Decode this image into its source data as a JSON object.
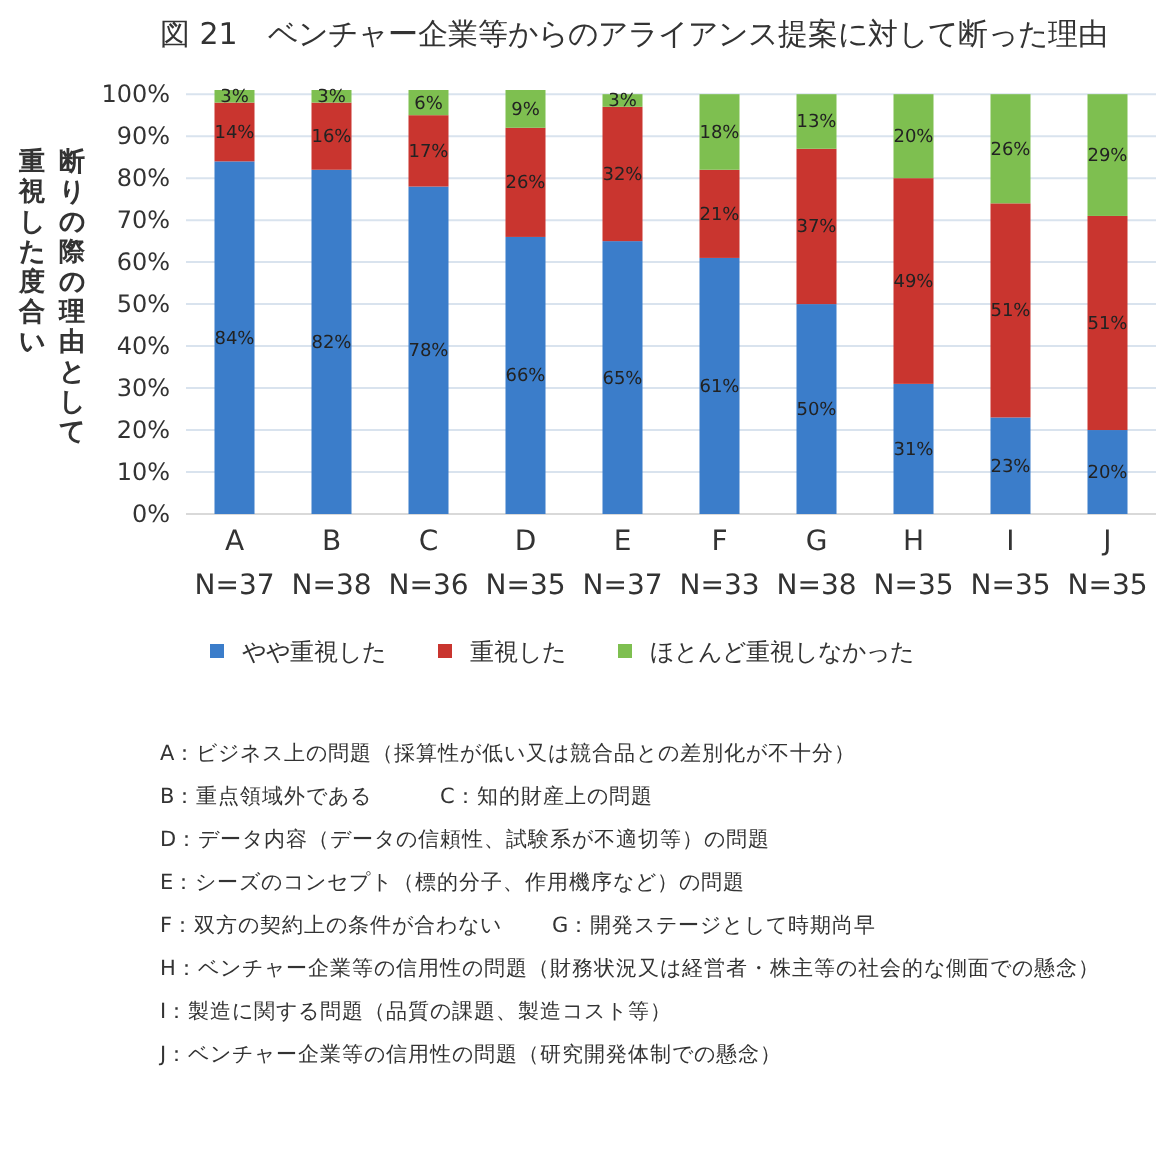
{
  "chart_data": {
    "type": "bar",
    "stacked": true,
    "title": "図 21　ベンチャー企業等からのアライアンス提案に対して断った理由",
    "ylabel": "断りの際の理由として重視した度合い",
    "categories": [
      "A\nN=37",
      "B\nN=38",
      "C\nN=36",
      "D\nN=35",
      "E\nN=37",
      "F\nN=33",
      "G\nN=38",
      "H\nN=35",
      "I\nN=35",
      "J\nN=35"
    ],
    "series": [
      {
        "name": "やや重視した",
        "color": "#3b7dca",
        "values": [
          84,
          82,
          78,
          66,
          65,
          61,
          50,
          31,
          23,
          20
        ],
        "value_labels": [
          "84%",
          "82%",
          "78%",
          "66%",
          "65%",
          "61%",
          "50%",
          "31%",
          "23%",
          "20%"
        ]
      },
      {
        "name": "重視した",
        "color": "#c9352f",
        "values": [
          14,
          16,
          17,
          26,
          32,
          21,
          37,
          49,
          51,
          51
        ],
        "value_labels": [
          "14%",
          "16%",
          "17%",
          "26%",
          "32%",
          "21%",
          "37%",
          "49%",
          "51%",
          "51%"
        ]
      },
      {
        "name": "ほとんど重視しなかった",
        "color": "#7ebf50",
        "values": [
          3,
          3,
          6,
          9,
          3,
          18,
          13,
          20,
          26,
          29
        ],
        "value_labels": [
          "3%",
          "3%",
          "6%",
          "9%",
          "3%",
          "18%",
          "13%",
          "20%",
          "26%",
          "29%"
        ]
      }
    ],
    "ylim": [
      0,
      101
    ],
    "yticks": [
      {
        "value": 0,
        "label": "0%"
      },
      {
        "value": 10,
        "label": "10%"
      },
      {
        "value": 20,
        "label": "20%"
      },
      {
        "value": 30,
        "label": "30%"
      },
      {
        "value": 40,
        "label": "40%"
      },
      {
        "value": 50,
        "label": "50%"
      },
      {
        "value": 60,
        "label": "60%"
      },
      {
        "value": 70,
        "label": "70%"
      },
      {
        "value": 80,
        "label": "80%"
      },
      {
        "value": 90,
        "label": "90%"
      },
      {
        "value": 100,
        "label": "100%"
      }
    ],
    "grid": "y",
    "legend": "bottom",
    "annotations": [
      "A：ビジネス上の問題（採算性が低い又は競合品との差別化が不十分）",
      "B：重点領域外である",
      "C：知的財産上の問題",
      "D：データ内容（データの信頼性、試験系が不適切等）の問題",
      "E：シーズのコンセプト（標的分子、作用機序など）の問題",
      "F：双方の契約上の条件が合わない",
      "G：開発ステージとして時期尚早",
      "H：ベンチャー企業等の信用性の問題（財務状況又は経営者・株主等の社会的な側面での懸念）",
      "I：製造に関する問題（品質の課題、製造コスト等）",
      "J：ベンチャー企業等の信用性の問題（研究開発体制での懸念）"
    ]
  }
}
